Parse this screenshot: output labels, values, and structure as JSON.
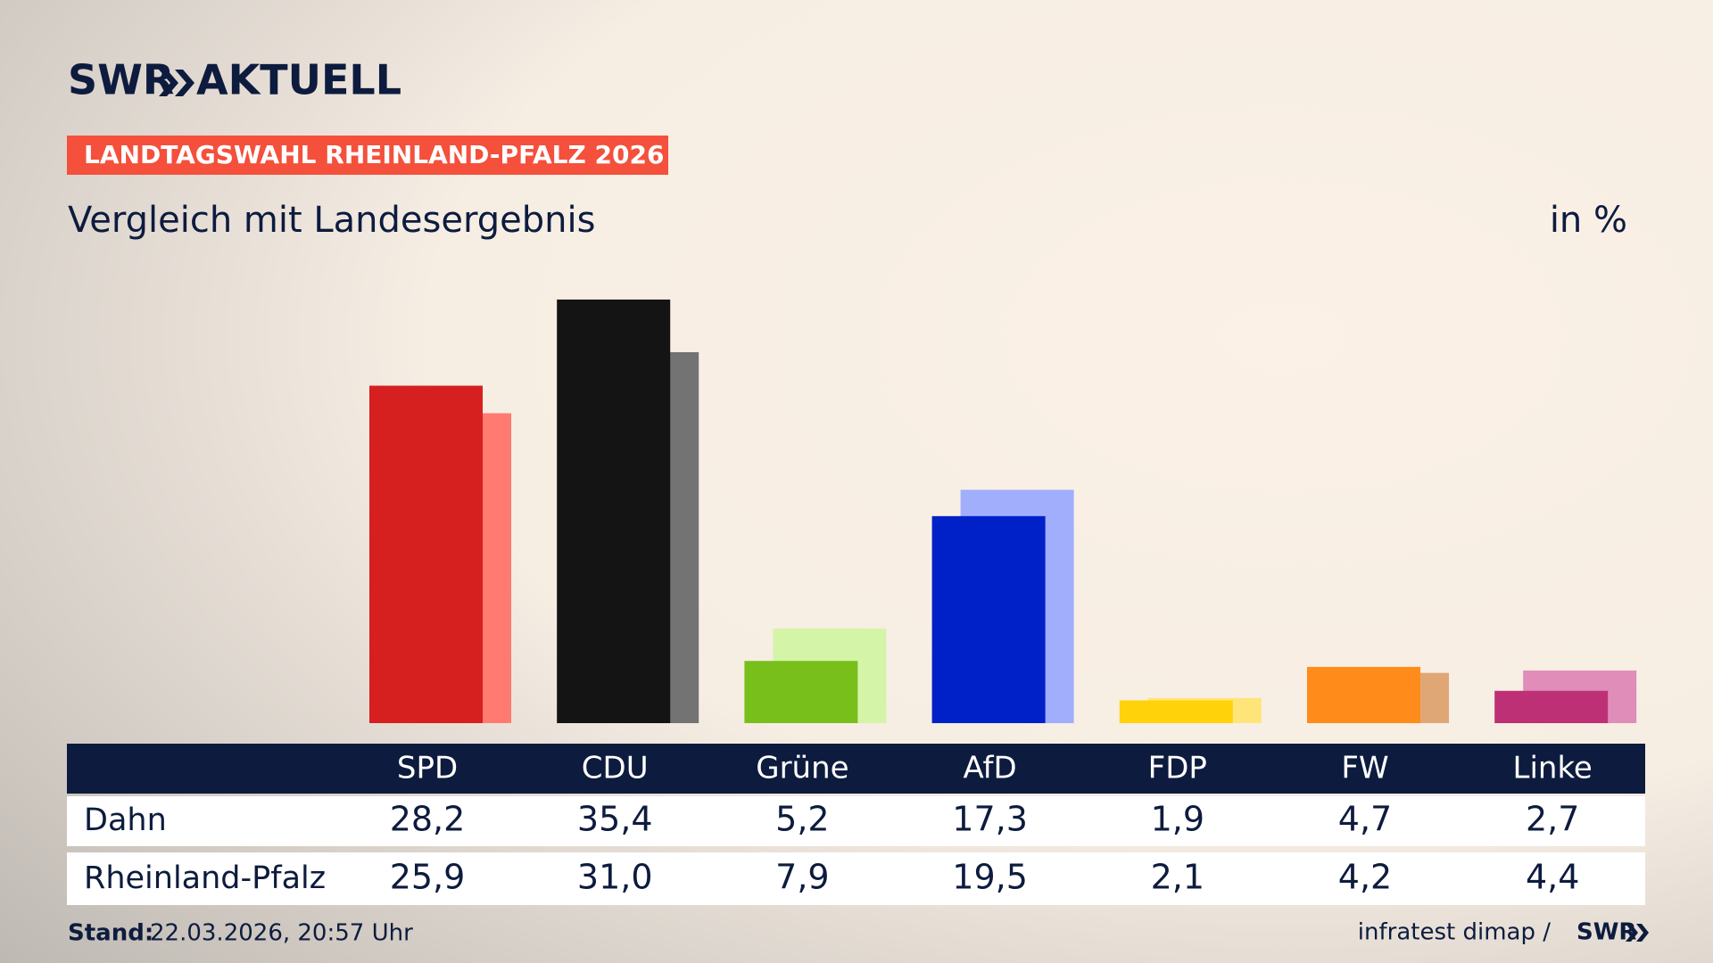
{
  "brand": {
    "name": "SWR",
    "product": "AKTUELL"
  },
  "chart_data": {
    "type": "bar",
    "kicker": "LANDTAGSWAHL RHEINLAND-PFALZ 2026",
    "title": "Vergleich mit Landesergebnis",
    "unit": "in %",
    "categories": [
      "SPD",
      "CDU",
      "Grüne",
      "AfD",
      "FDP",
      "FW",
      "Linke"
    ],
    "series": [
      {
        "name": "Dahn",
        "color": [
          "#d61f1f",
          "#141414",
          "#79bf1c",
          "#0021c8",
          "#ffd20a",
          "#ff8c1a",
          "#be3075"
        ],
        "values": [
          28.2,
          35.4,
          5.2,
          17.3,
          1.9,
          4.7,
          2.7
        ],
        "value_labels": [
          "28,2",
          "35,4",
          "5,2",
          "17,3",
          "1,9",
          "4,7",
          "2,7"
        ]
      },
      {
        "name": "Rheinland-Pfalz",
        "color": [
          "#ff7a70",
          "#737373",
          "#d4f5a8",
          "#a0aefc",
          "#ffe47a",
          "#e0a776",
          "#e08dba"
        ],
        "values": [
          25.9,
          31.0,
          7.9,
          19.5,
          2.1,
          4.2,
          4.4
        ],
        "value_labels": [
          "25,9",
          "31,0",
          "7,9",
          "19,5",
          "2,1",
          "4,2",
          "4,4"
        ]
      }
    ]
  },
  "footer": {
    "stand_label": "Stand:",
    "stand_value": "22.03.2026, 20:57 Uhr",
    "source": "infratest dimap /",
    "source_logo": "SWR"
  }
}
